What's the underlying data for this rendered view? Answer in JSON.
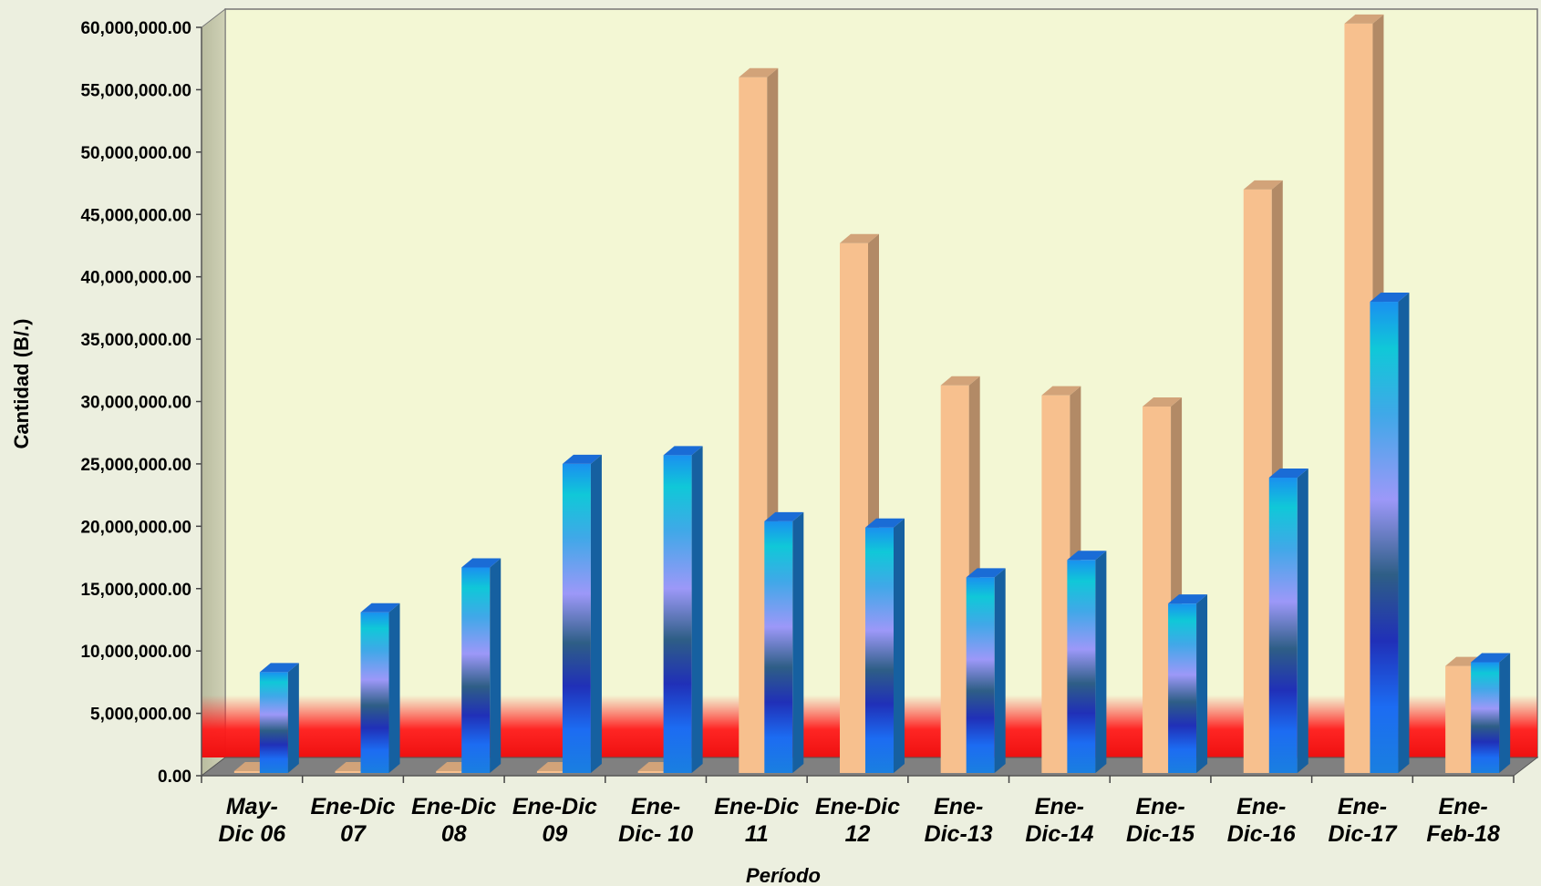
{
  "chart_data": {
    "type": "bar",
    "title": "",
    "xlabel": "Período",
    "ylabel": "Cantidad  (B/.)",
    "ylim": [
      0,
      60000000
    ],
    "ytick_step": 5000000,
    "ytick_labels": [
      "0.00",
      "5,000,000.00",
      "10,000,000.00",
      "15,000,000.00",
      "20,000,000.00",
      "25,000,000.00",
      "30,000,000.00",
      "35,000,000.00",
      "40,000,000.00",
      "45,000,000.00",
      "50,000,000.00",
      "55,000,000.00",
      "60,000,000.00"
    ],
    "categories": [
      [
        "May-",
        "Dic 06"
      ],
      [
        "Ene-Dic",
        "07"
      ],
      [
        "Ene-Dic",
        "08"
      ],
      [
        "Ene-Dic",
        "09"
      ],
      [
        "Ene-",
        "Dic- 10"
      ],
      [
        "Ene-Dic",
        "11"
      ],
      [
        "Ene-Dic",
        "12"
      ],
      [
        "Ene-",
        "Dic-13"
      ],
      [
        "Ene-",
        "Dic-14"
      ],
      [
        "Ene-",
        "Dic-15"
      ],
      [
        "Ene-",
        "Dic-16"
      ],
      [
        "Ene-",
        "Dic-17"
      ],
      [
        "Ene-",
        "Feb-18"
      ]
    ],
    "series": [
      {
        "color": "#f7c08e",
        "values": [
          0,
          0,
          0,
          0,
          0,
          56000000,
          42700000,
          31300000,
          30500000,
          29600000,
          47000000,
          60300000,
          8800000
        ]
      },
      {
        "color": "#1f8de6",
        "values": [
          8300000,
          13100000,
          16700000,
          25000000,
          25700000,
          20400000,
          19900000,
          15900000,
          17300000,
          13800000,
          23900000,
          38000000,
          9100000
        ]
      }
    ],
    "grid": false,
    "legend": "none",
    "colors": {
      "plot_bg": "#f3f7d4",
      "back_wall_side": "#c5c7ad",
      "floor": "#808080",
      "floor_band": "#ff1a1a",
      "page_bg": "#ecefdf"
    }
  }
}
